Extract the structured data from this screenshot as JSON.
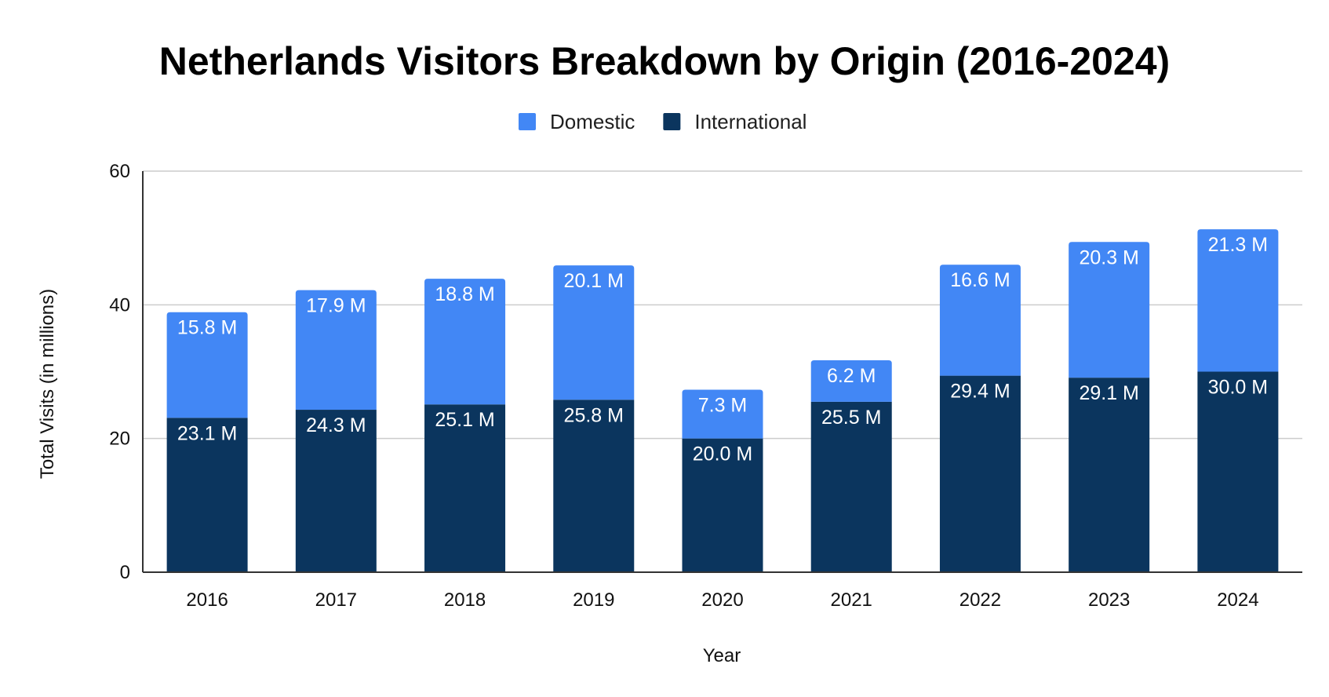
{
  "chart_data": {
    "type": "bar",
    "stacked": true,
    "title": "Netherlands Visitors Breakdown by Origin (2016-2024)",
    "xlabel": "Year",
    "ylabel": "Total Visits (in millions)",
    "ylim": [
      0,
      60
    ],
    "yticks": [
      0,
      20,
      40,
      60
    ],
    "grid": true,
    "legend_position": "top",
    "categories": [
      "2016",
      "2017",
      "2018",
      "2019",
      "2020",
      "2021",
      "2022",
      "2023",
      "2024"
    ],
    "series": [
      {
        "name": "International",
        "color": "#0b355e",
        "values": [
          23.1,
          24.3,
          25.1,
          25.8,
          20.0,
          25.5,
          29.4,
          29.1,
          30.0
        ],
        "labels": [
          "23.1 M",
          "24.3 M",
          "25.1 M",
          "25.8 M",
          "20.0 M",
          "25.5 M",
          "29.4 M",
          "29.1 M",
          "30.0 M"
        ]
      },
      {
        "name": "Domestic",
        "color": "#4287f5",
        "values": [
          15.8,
          17.9,
          18.8,
          20.1,
          7.3,
          6.2,
          16.6,
          20.3,
          21.3
        ],
        "labels": [
          "15.8 M",
          "17.9 M",
          "18.8 M",
          "20.1 M",
          "7.3 M",
          "6.2 M",
          "16.6 M",
          "20.3 M",
          "21.3 M"
        ]
      }
    ],
    "legend_order": [
      "Domestic",
      "International"
    ]
  }
}
